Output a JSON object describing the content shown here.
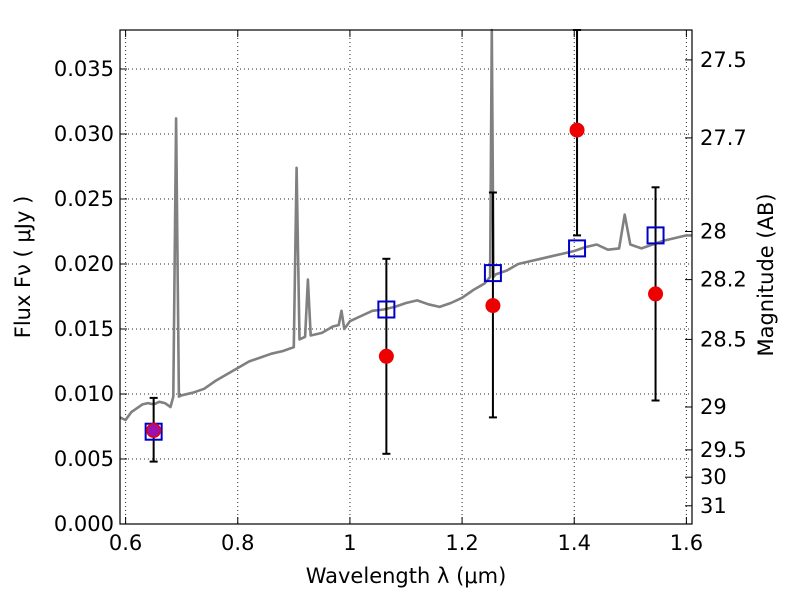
{
  "chart_data": {
    "type": "line",
    "xlabel": "Wavelength  λ (μm)",
    "ylabel": "Flux  Fν ( μJy )",
    "y2label": "Magnitude (AB)",
    "xlim": [
      0.59,
      1.61
    ],
    "ylim": [
      0.0,
      0.038
    ],
    "grid": true,
    "x_ticks": [
      0.6,
      0.8,
      1.0,
      1.2,
      1.4,
      1.6
    ],
    "x_tick_labels": [
      "0.6",
      "0.8",
      "1",
      "1.2",
      "1.4",
      "1.6"
    ],
    "y_ticks": [
      0.0,
      0.005,
      0.01,
      0.015,
      0.02,
      0.025,
      0.03,
      0.035
    ],
    "y_tick_labels": [
      "0.000",
      "0.005",
      "0.010",
      "0.015",
      "0.020",
      "0.025",
      "0.030",
      "0.035"
    ],
    "mag_ticks": [
      {
        "label": "27.5",
        "flux": 0.0357
      },
      {
        "label": "27.7",
        "flux": 0.0297
      },
      {
        "label": "28",
        "flux": 0.0225
      },
      {
        "label": "28.2",
        "flux": 0.0188
      },
      {
        "label": "28.5",
        "flux": 0.0142
      },
      {
        "label": "29",
        "flux": 0.009
      },
      {
        "label": "29.5",
        "flux": 0.0057
      },
      {
        "label": "30",
        "flux": 0.0036
      },
      {
        "label": "31",
        "flux": 0.0014
      }
    ],
    "sed_color": "#808080",
    "sed": [
      [
        0.59,
        0.0082
      ],
      [
        0.6,
        0.008
      ],
      [
        0.61,
        0.0086
      ],
      [
        0.62,
        0.0089
      ],
      [
        0.63,
        0.0092
      ],
      [
        0.64,
        0.0093
      ],
      [
        0.65,
        0.0092
      ],
      [
        0.66,
        0.0094
      ],
      [
        0.67,
        0.0093
      ],
      [
        0.68,
        0.009
      ],
      [
        0.685,
        0.0098
      ],
      [
        0.69,
        0.0312
      ],
      [
        0.695,
        0.0098
      ],
      [
        0.7,
        0.0099
      ],
      [
        0.72,
        0.0101
      ],
      [
        0.74,
        0.0104
      ],
      [
        0.76,
        0.011
      ],
      [
        0.78,
        0.0115
      ],
      [
        0.8,
        0.012
      ],
      [
        0.82,
        0.0125
      ],
      [
        0.84,
        0.0128
      ],
      [
        0.86,
        0.0131
      ],
      [
        0.88,
        0.0133
      ],
      [
        0.9,
        0.0136
      ],
      [
        0.905,
        0.0274
      ],
      [
        0.91,
        0.0142
      ],
      [
        0.92,
        0.0144
      ],
      [
        0.925,
        0.0188
      ],
      [
        0.93,
        0.0145
      ],
      [
        0.95,
        0.0147
      ],
      [
        0.97,
        0.0152
      ],
      [
        0.98,
        0.0153
      ],
      [
        0.985,
        0.0164
      ],
      [
        0.99,
        0.015
      ],
      [
        1.0,
        0.0156
      ],
      [
        1.02,
        0.016
      ],
      [
        1.04,
        0.0164
      ],
      [
        1.06,
        0.0165
      ],
      [
        1.08,
        0.0167
      ],
      [
        1.1,
        0.017
      ],
      [
        1.12,
        0.0172
      ],
      [
        1.14,
        0.0169
      ],
      [
        1.16,
        0.0167
      ],
      [
        1.18,
        0.017
      ],
      [
        1.2,
        0.0174
      ],
      [
        1.22,
        0.018
      ],
      [
        1.24,
        0.0185
      ],
      [
        1.25,
        0.019
      ],
      [
        1.253,
        0.038
      ],
      [
        1.256,
        0.019
      ],
      [
        1.26,
        0.0192
      ],
      [
        1.28,
        0.0195
      ],
      [
        1.3,
        0.02
      ],
      [
        1.32,
        0.0202
      ],
      [
        1.34,
        0.0204
      ],
      [
        1.36,
        0.0206
      ],
      [
        1.38,
        0.0208
      ],
      [
        1.4,
        0.021
      ],
      [
        1.42,
        0.0213
      ],
      [
        1.44,
        0.0215
      ],
      [
        1.46,
        0.0211
      ],
      [
        1.48,
        0.0212
      ],
      [
        1.49,
        0.0238
      ],
      [
        1.5,
        0.0215
      ],
      [
        1.52,
        0.0212
      ],
      [
        1.54,
        0.0215
      ],
      [
        1.56,
        0.0218
      ],
      [
        1.58,
        0.022
      ],
      [
        1.6,
        0.0222
      ],
      [
        1.61,
        0.0222
      ]
    ],
    "photometry": {
      "name": "observed",
      "color": "#ee0000",
      "x": [
        0.65,
        1.065,
        1.255,
        1.405,
        1.545
      ],
      "y": [
        0.0072,
        0.0129,
        0.0168,
        0.0303,
        0.0177
      ],
      "yerr_low": [
        0.0048,
        0.0054,
        0.0082,
        0.0222,
        0.0095
      ],
      "yerr_high": [
        0.0097,
        0.0204,
        0.0255,
        0.038,
        0.0259
      ]
    },
    "model_photometry": {
      "name": "model",
      "color": "#0000cc",
      "x": [
        0.65,
        1.065,
        1.255,
        1.405,
        1.545
      ],
      "y": [
        0.0071,
        0.0165,
        0.0193,
        0.0212,
        0.0222
      ]
    }
  }
}
